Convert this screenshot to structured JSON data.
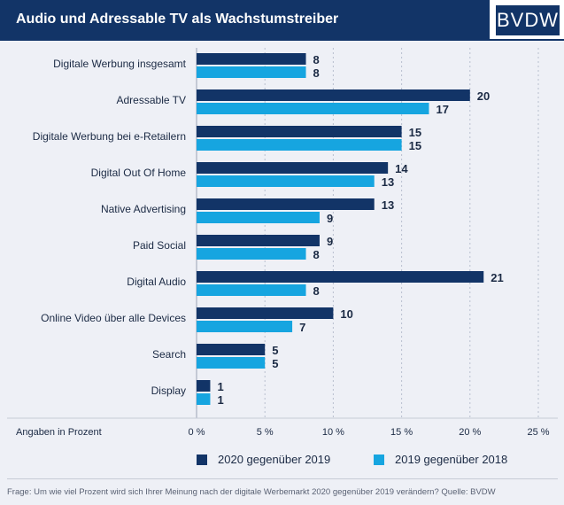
{
  "header": {
    "title": "Audio und Adressable TV als Wachstumstreiber",
    "logo_text": "BVDW"
  },
  "chart_data": {
    "type": "bar",
    "orientation": "horizontal",
    "categories": [
      "Digitale Werbung insgesamt",
      "Adressable TV",
      "Digitale Werbung bei e-Retailern",
      "Digital Out Of Home",
      "Native Advertising",
      "Paid Social",
      "Digital Audio",
      "Online Video über alle Devices",
      "Search",
      "Display"
    ],
    "series": [
      {
        "name": "2020 gegenüber 2019",
        "color": "#123467",
        "values": [
          8,
          20,
          15,
          14,
          13,
          9,
          21,
          10,
          5,
          1
        ]
      },
      {
        "name": "2019 gegenüber 2018",
        "color": "#16a5e0",
        "values": [
          8,
          17,
          15,
          13,
          9,
          8,
          8,
          7,
          5,
          1
        ]
      }
    ],
    "xlabel": "Angaben in Prozent",
    "xlim": [
      0,
      25
    ],
    "xticks": [
      0,
      5,
      10,
      15,
      20,
      25
    ],
    "xtick_labels": [
      "0 %",
      "5 %",
      "10 %",
      "15 %",
      "20 %",
      "25 %"
    ],
    "grid": "vertical dotted",
    "legend_position": "bottom"
  },
  "footnote": "Frage: Um wie viel Prozent wird sich Ihrer Meinung nach der digitale Werbemarkt 2020 gegenüber 2019 verändern? Quelle: BVDW"
}
